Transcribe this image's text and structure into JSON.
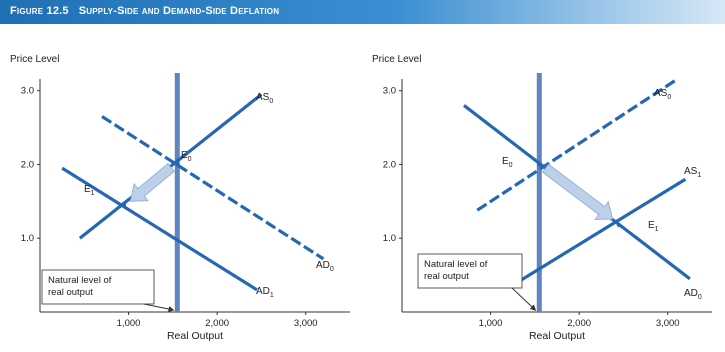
{
  "figure": {
    "number": "Figure 12.5",
    "title": "Supply-Side and Demand-Side Deflation"
  },
  "colors": {
    "banner": "#2a7fc4",
    "curve": "#2467b2",
    "natural_line": "#5f84c0",
    "arrow_fill": "#bcd0ea",
    "axis": "#333333"
  },
  "chart_data": [
    {
      "type": "line",
      "ylabel": "Price Level",
      "xlabel": "Real Output",
      "x_ticks": [
        1000,
        2000,
        3000
      ],
      "x_tick_labels": [
        "1,000",
        "2,000",
        "3,000"
      ],
      "y_ticks": [
        1.0,
        2.0,
        3.0
      ],
      "y_tick_labels": [
        "1.0",
        "2.0",
        "3.0"
      ],
      "xlim": [
        0,
        3500
      ],
      "ylim": [
        0,
        3.05
      ],
      "natural_output": 1550,
      "natural_label_lines": [
        "Natural level of",
        "real output"
      ],
      "series": [
        {
          "name": "AS0",
          "label": "AS",
          "sub": "0",
          "style": "solid",
          "points": [
            [
              450,
              1.0
            ],
            [
              2500,
              2.95
            ]
          ]
        },
        {
          "name": "AD0",
          "label": "AD",
          "sub": "0",
          "style": "dashed",
          "points": [
            [
              700,
              2.65
            ],
            [
              3200,
              0.72
            ]
          ]
        },
        {
          "name": "AD1",
          "label": "AD",
          "sub": "1",
          "style": "solid",
          "points": [
            [
              250,
              1.95
            ],
            [
              2450,
              0.3
            ]
          ]
        }
      ],
      "points": [
        {
          "label": "E",
          "sub": "0",
          "x": 1550,
          "y": 2.0
        },
        {
          "label": "E",
          "sub": "1",
          "x": 950,
          "y": 1.45
        }
      ],
      "shift_arrow": {
        "from": [
          1480,
          1.96
        ],
        "to": [
          1020,
          1.5
        ]
      }
    },
    {
      "type": "line",
      "ylabel": "Price Level",
      "xlabel": "Real Output",
      "x_ticks": [
        1000,
        2000,
        3000
      ],
      "x_tick_labels": [
        "1,000",
        "2,000",
        "3,000"
      ],
      "y_ticks": [
        1.0,
        2.0,
        3.0
      ],
      "y_tick_labels": [
        "1.0",
        "2.0",
        "3.0"
      ],
      "xlim": [
        0,
        3500
      ],
      "ylim": [
        0,
        3.05
      ],
      "natural_output": 1550,
      "natural_label_lines": [
        "Natural level of",
        "real output"
      ],
      "series": [
        {
          "name": "AS0",
          "label": "AS",
          "sub": "0",
          "style": "dashed",
          "points": [
            [
              850,
              1.38
            ],
            [
              3100,
              3.15
            ]
          ]
        },
        {
          "name": "AS1",
          "label": "AS",
          "sub": "1",
          "style": "solid",
          "points": [
            [
              1300,
              0.4
            ],
            [
              3200,
              1.8
            ]
          ]
        },
        {
          "name": "AD0",
          "label": "AD",
          "sub": "0",
          "style": "solid",
          "points": [
            [
              700,
              2.8
            ],
            [
              3250,
              0.45
            ]
          ]
        }
      ],
      "points": [
        {
          "label": "E",
          "sub": "0",
          "x": 1550,
          "y": 2.0
        },
        {
          "label": "E",
          "sub": "1",
          "x": 2450,
          "y": 1.18
        }
      ],
      "shift_arrow": {
        "from": [
          1620,
          1.95
        ],
        "to": [
          2380,
          1.26
        ]
      }
    }
  ]
}
